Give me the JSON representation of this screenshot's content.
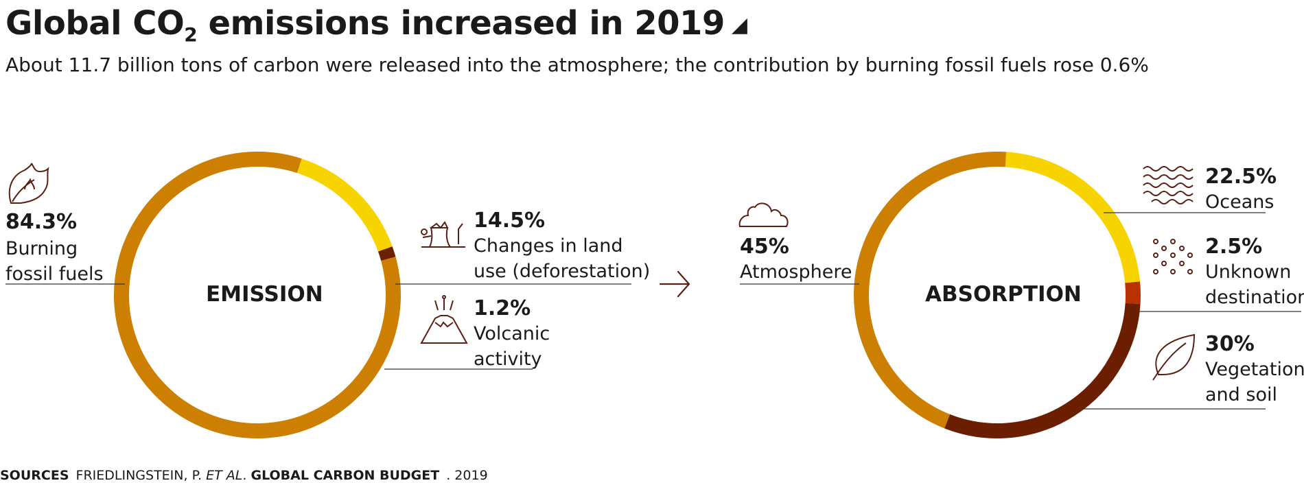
{
  "header": {
    "title_pre": "Global CO",
    "title_sub": "2",
    "title_post": " emissions increased in 2019",
    "title_marker": "◢",
    "subtitle": "About 11.7 billion tons of carbon were released into the atmosphere; the contribution by burning fossil fuels rose 0.6%"
  },
  "chart_data": [
    {
      "type": "pie",
      "title": "EMISSION",
      "categories": [
        "Burning fossil fuels",
        "Changes in land use (deforestation)",
        "Volcanic activity"
      ],
      "values": [
        84.3,
        14.5,
        1.2
      ],
      "value_labels": [
        "84.3%",
        "14.5%",
        "1.2%"
      ],
      "label_lines": [
        [
          "Burning",
          "fossil fuels"
        ],
        [
          "Changes in land",
          "use (deforestation)"
        ],
        [
          "Volcanic",
          "activity"
        ]
      ],
      "colors": [
        "#cc7f00",
        "#f7d300",
        "#6b2000"
      ],
      "icons": [
        "leaf-flame-icon",
        "tree-stump-icon",
        "volcano-icon"
      ]
    },
    {
      "type": "pie",
      "title": "ABSORPTION",
      "categories": [
        "Oceans",
        "Unknown destination",
        "Vegetation and soil",
        "Atmosphere"
      ],
      "values": [
        22.5,
        2.5,
        30,
        45
      ],
      "value_labels": [
        "22.5%",
        "2.5%",
        "30%",
        "45%"
      ],
      "label_lines": [
        [
          "Oceans"
        ],
        [
          "Unknown",
          "destination"
        ],
        [
          "Vegetation",
          "and soil"
        ],
        [
          "Atmosphere"
        ]
      ],
      "colors": [
        "#f7d300",
        "#b83200",
        "#6b1e00",
        "#cc7f00"
      ],
      "icons": [
        "waves-icon",
        "dots-icon",
        "leaf-icon",
        "cloud-icon"
      ]
    }
  ],
  "source": {
    "label": "SOURCES",
    "authors": "FRIEDLINGSTEIN, P. ",
    "etal": "ET AL",
    "dot": ". ",
    "work": "GLOBAL CARBON BUDGET",
    "year": ". 2019"
  },
  "colors": {
    "line": "#333333",
    "icon": "#5a1f12"
  }
}
